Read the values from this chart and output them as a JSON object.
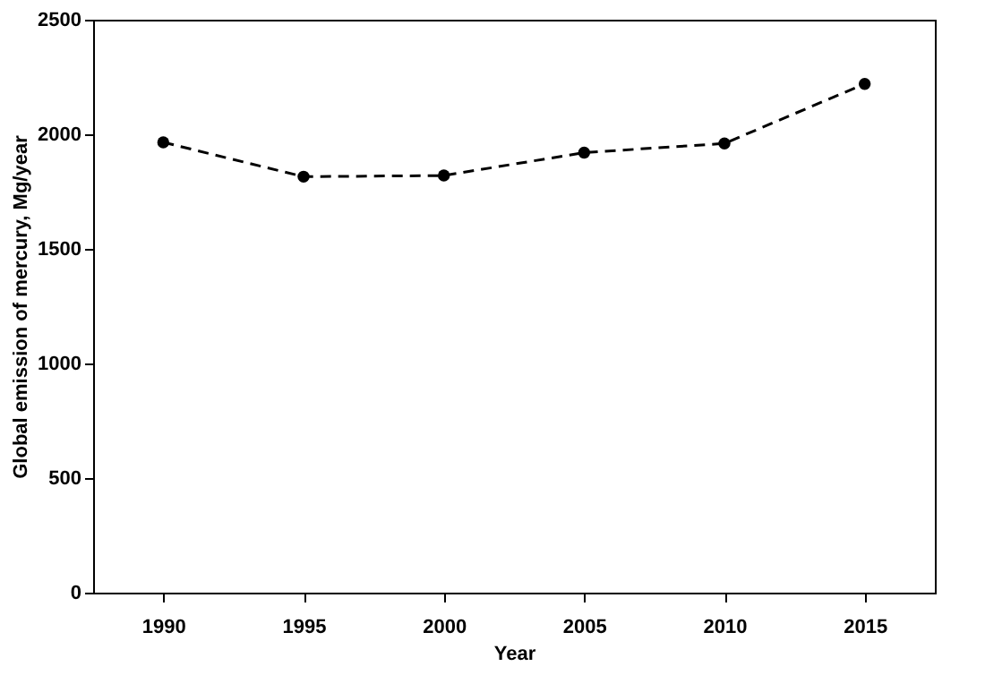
{
  "chart_data": {
    "type": "line",
    "xlabel": "Year",
    "ylabel": "Global emission of mercury, Mg/year",
    "categories": [
      "1990",
      "1995",
      "2000",
      "2005",
      "2010",
      "2015"
    ],
    "series": [
      {
        "color": "#000000",
        "values": [
          1965,
          1815,
          1820,
          1920,
          1960,
          2220
        ]
      }
    ],
    "ylim": [
      0,
      2500
    ],
    "yticks": [
      0,
      500,
      1000,
      1500,
      2000,
      2500
    ],
    "grid": false,
    "marker": "circle",
    "line_style": "dashed"
  }
}
